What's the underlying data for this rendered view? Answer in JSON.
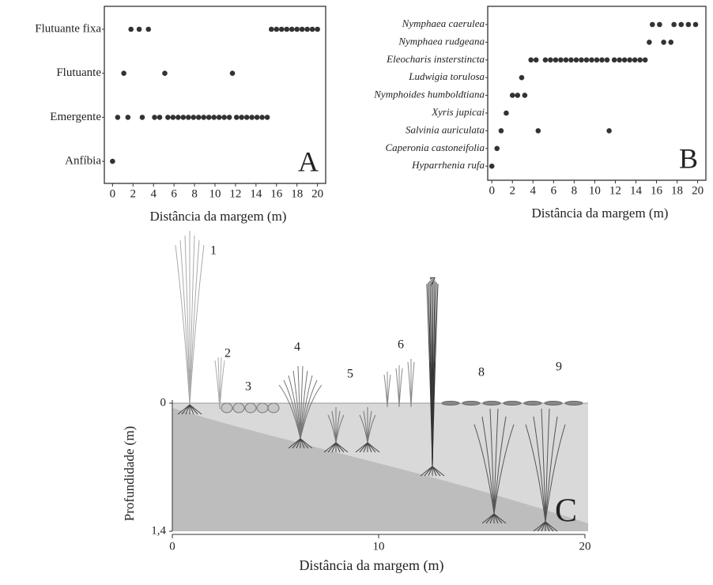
{
  "chart_data": [
    {
      "type": "strip",
      "panel": "A",
      "xlabel": "Distância da margem (m)",
      "categories": [
        "Flutuante fixa",
        "Flutuante",
        "Emergente",
        "Anfíbia"
      ],
      "x": [
        [
          1.8,
          2.6,
          3.5,
          15.5,
          16,
          16.5,
          17,
          17.5,
          18,
          18.5,
          19,
          19.5,
          20
        ],
        [
          1.1,
          5.1,
          11.7
        ],
        [
          0.5,
          1.5,
          2.9,
          4.1,
          4.6,
          5.4,
          5.9,
          6.4,
          6.9,
          7.4,
          7.9,
          8.4,
          8.9,
          9.4,
          9.9,
          10.4,
          10.9,
          11.4,
          12.1,
          12.6,
          13.1,
          13.6,
          14.1,
          14.6,
          15.1
        ],
        [
          0
        ]
      ],
      "xlim": [
        -0.8,
        20.8
      ],
      "xticks": [
        0,
        2,
        4,
        6,
        8,
        10,
        12,
        14,
        16,
        18,
        20
      ]
    },
    {
      "type": "strip",
      "panel": "B",
      "xlabel": "Distância da margem (m)",
      "categories": [
        "Nymphaea caerulea",
        "Nymphaea rudgeana",
        "Eleocharis insterstincta",
        "Ludwigia torulosa",
        "Nymphoides humboldtiana",
        "Xyris jupicai",
        "Salvinia auriculata",
        "Caperonia castoneifolia",
        "Hyparrhenia rufa"
      ],
      "x": [
        [
          15.6,
          16.3,
          17.7,
          18.4,
          19.1,
          19.8
        ],
        [
          15.3,
          16.7,
          17.4
        ],
        [
          3.8,
          4.3,
          5.2,
          5.7,
          6.2,
          6.7,
          7.2,
          7.7,
          8.2,
          8.7,
          9.2,
          9.7,
          10.2,
          10.7,
          11.2,
          11.9,
          12.4,
          12.9,
          13.4,
          13.9,
          14.4,
          14.9
        ],
        [
          2.9
        ],
        [
          2.0,
          2.5,
          3.2
        ],
        [
          1.4
        ],
        [
          0.9,
          4.5,
          11.4
        ],
        [
          0.5
        ],
        [
          0
        ]
      ],
      "xlim": [
        -0.4,
        20.8
      ],
      "xticks": [
        0,
        2,
        4,
        6,
        8,
        10,
        12,
        14,
        16,
        18,
        20
      ]
    },
    {
      "type": "illustration",
      "panel": "C",
      "xlabel": "Distância da margem (m)",
      "ylabel": "Profundidade (m)",
      "xlim": [
        0,
        20
      ],
      "xticks": [
        0,
        10,
        20
      ],
      "ylim": [
        1.4,
        0
      ],
      "yticks": [
        0,
        {
          "value": 1.4,
          "label": "1,4"
        }
      ],
      "plant_labels": [
        "1",
        "2",
        "3",
        "4",
        "5",
        "6",
        "7",
        "8",
        "9"
      ]
    }
  ]
}
